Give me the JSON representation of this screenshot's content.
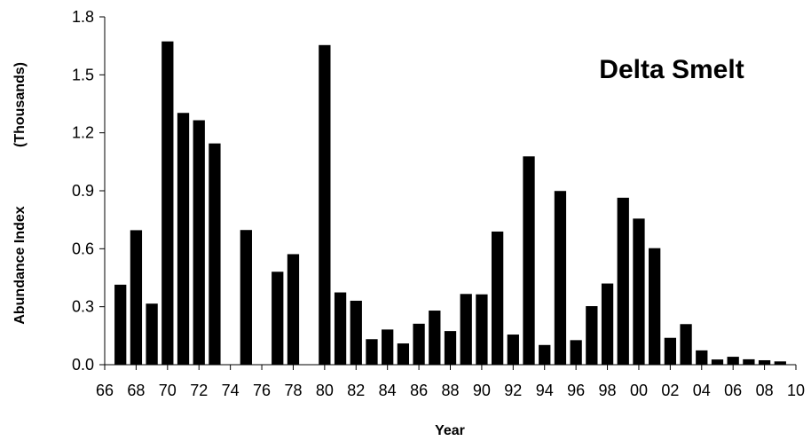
{
  "chart_data": {
    "type": "bar",
    "title": "Delta Smelt",
    "xlabel": "Year",
    "ylabel": "Abundance Index",
    "ylabel_unit": "(Thousands)",
    "ylim": [
      0,
      1.8
    ],
    "yticks": [
      "0.0",
      "0.3",
      "0.6",
      "0.9",
      "1.2",
      "1.5",
      "1.8"
    ],
    "xticks": [
      "66",
      "68",
      "70",
      "72",
      "74",
      "76",
      "78",
      "80",
      "82",
      "84",
      "86",
      "88",
      "90",
      "92",
      "94",
      "96",
      "98",
      "00",
      "02",
      "04",
      "06",
      "08",
      "10"
    ],
    "grid": false,
    "bar_color": "#000000",
    "categories": [
      "67",
      "68",
      "69",
      "70",
      "71",
      "72",
      "73",
      "74",
      "75",
      "76",
      "77",
      "78",
      "79",
      "80",
      "81",
      "82",
      "83",
      "84",
      "85",
      "86",
      "87",
      "88",
      "89",
      "90",
      "91",
      "92",
      "93",
      "94",
      "95",
      "96",
      "97",
      "98",
      "99",
      "00",
      "01",
      "02",
      "03",
      "04",
      "05",
      "06",
      "07",
      "08",
      "09"
    ],
    "values": [
      0.414,
      0.696,
      0.316,
      1.673,
      1.303,
      1.265,
      1.145,
      0,
      0.697,
      0,
      0.481,
      0.572,
      0,
      1.654,
      0.374,
      0.331,
      0.132,
      0.182,
      0.11,
      0.212,
      0.28,
      0.174,
      0.366,
      0.364,
      0.689,
      0.156,
      1.078,
      0.102,
      0.899,
      0.127,
      0.303,
      0.42,
      0.864,
      0.756,
      0.603,
      0.139,
      0.21,
      0.074,
      0.027,
      0.041,
      0.028,
      0.023,
      0.017
    ]
  }
}
